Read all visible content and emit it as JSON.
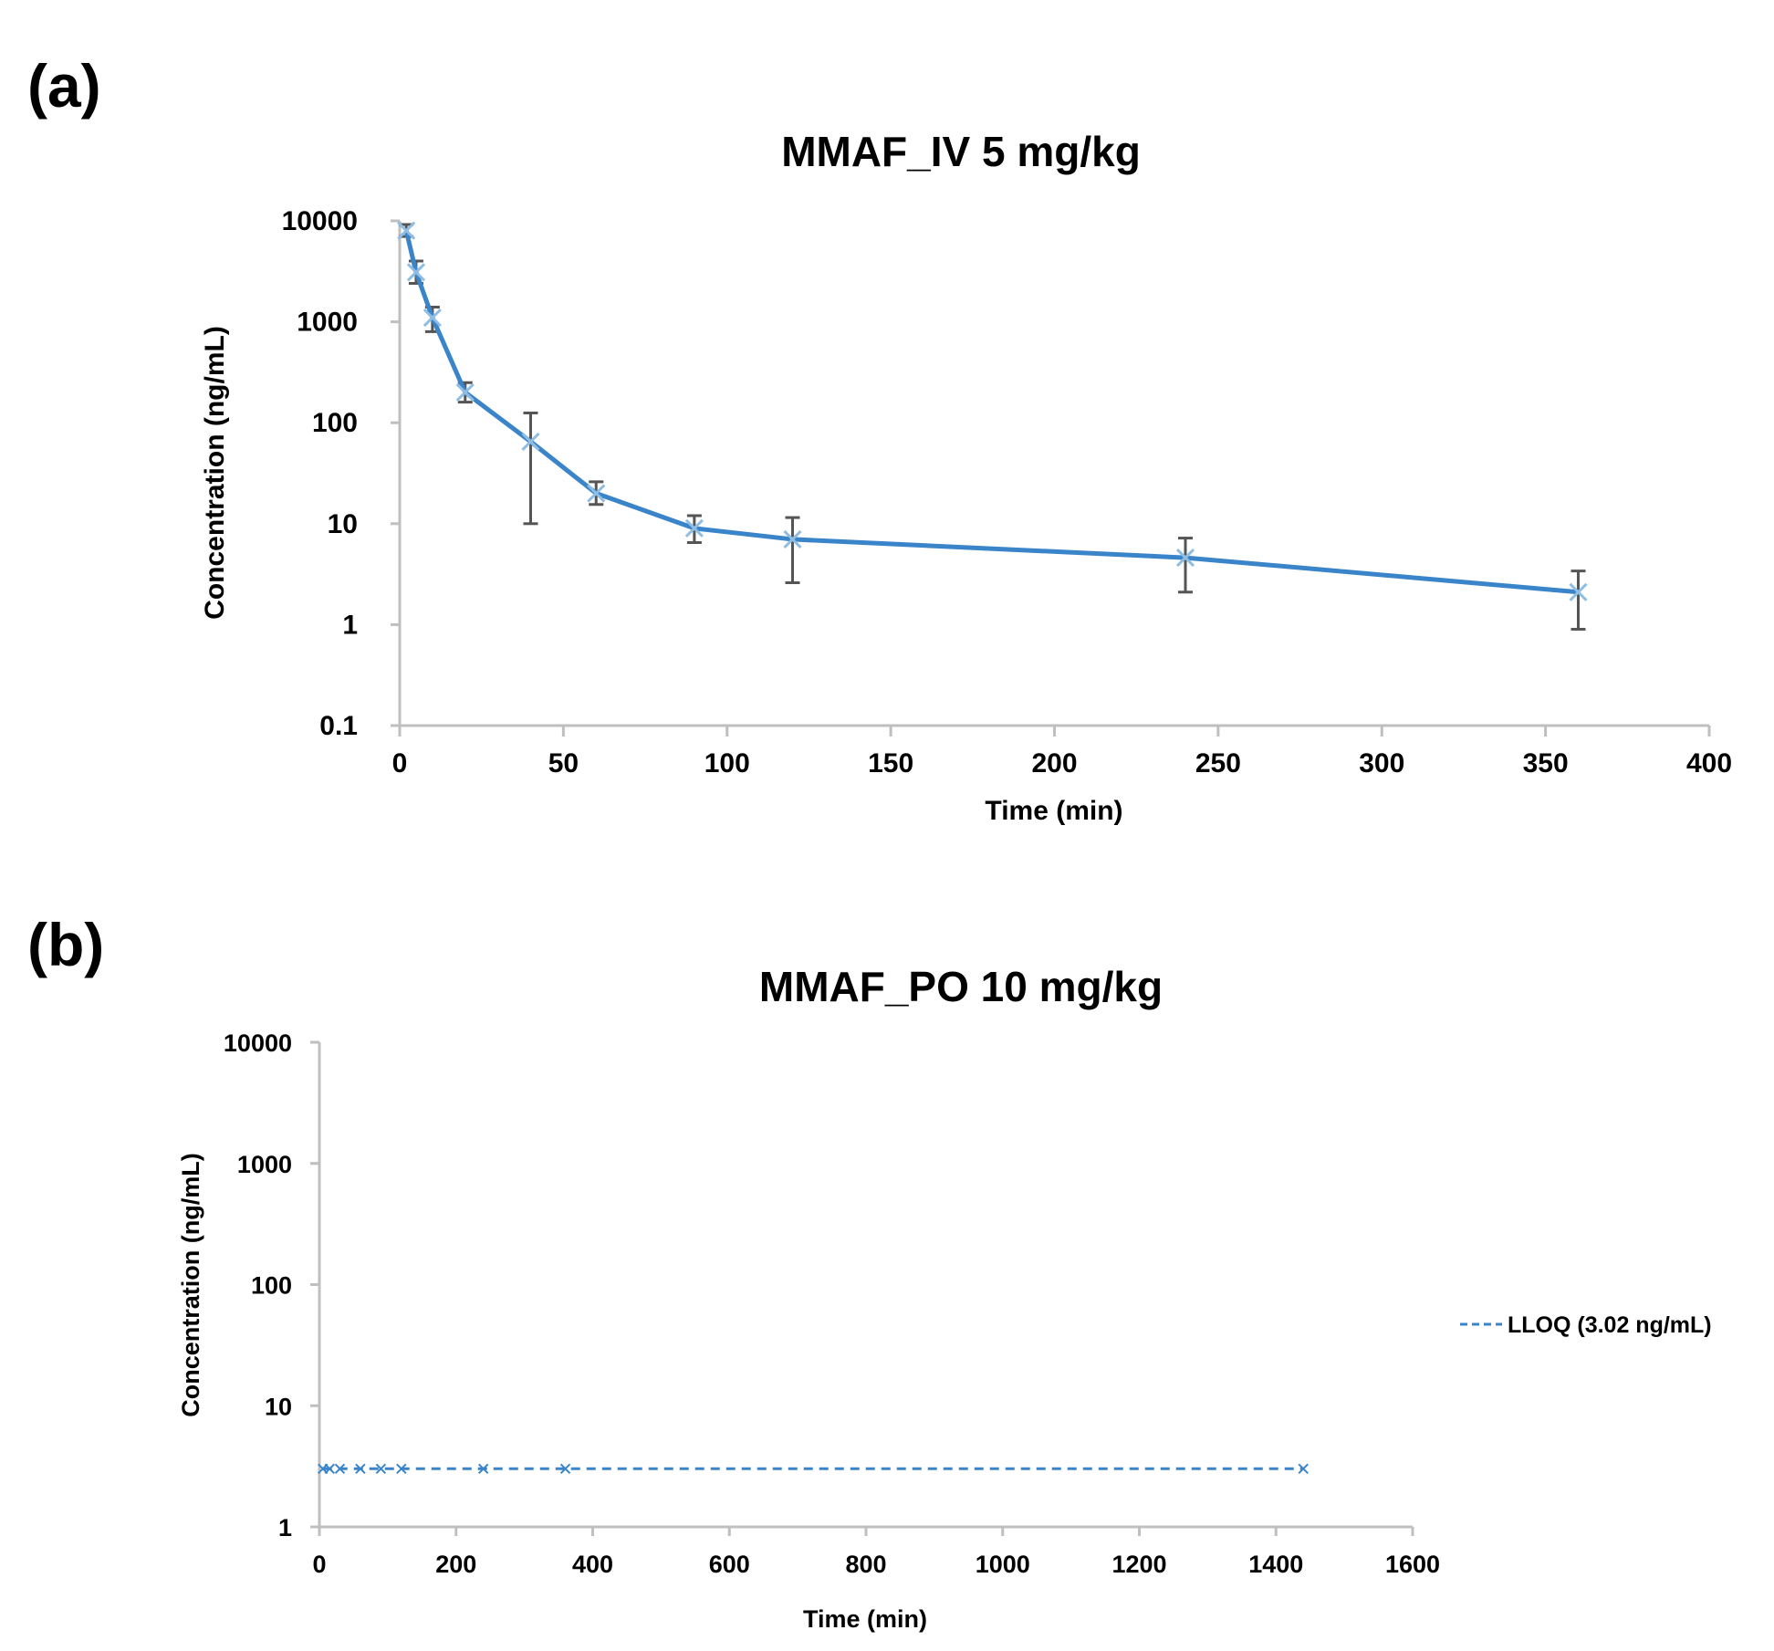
{
  "chart_data": [
    {
      "id": "a",
      "panel_label": "(a)",
      "type": "line",
      "title": "MMAF_IV  5 mg/kg",
      "xlabel": "Time (min)",
      "ylabel": "Concentration (ng/mL)",
      "xlim": [
        0,
        400
      ],
      "ylim": [
        0.1,
        10000
      ],
      "yscale": "log",
      "x_ticks": [
        "0",
        "50",
        "100",
        "150",
        "200",
        "250",
        "300",
        "350",
        "400"
      ],
      "x_tick_values": [
        0,
        50,
        100,
        150,
        200,
        250,
        300,
        350,
        400
      ],
      "y_ticks": [
        "10000",
        "1000",
        "100",
        "10",
        "1",
        "0.1"
      ],
      "y_tick_values": [
        10000,
        1000,
        100,
        10,
        1,
        0.1
      ],
      "grid": false,
      "series": [
        {
          "name": "MMAF IV",
          "color": "#3a84c9",
          "x": [
            2,
            5,
            10,
            20,
            40,
            60,
            90,
            120,
            240,
            360
          ],
          "y": [
            8000,
            3100,
            1100,
            200,
            65,
            20,
            9,
            7,
            4.6,
            2.1
          ],
          "err_low": [
            7000,
            2400,
            800,
            160,
            10,
            15.5,
            6.5,
            2.6,
            2.1,
            0.9
          ],
          "err_high": [
            9200,
            4000,
            1400,
            250,
            125,
            26,
            12,
            11.5,
            7.2,
            3.4
          ]
        }
      ]
    },
    {
      "id": "b",
      "panel_label": "(b)",
      "type": "line",
      "title": "MMAF_PO 10 mg/kg",
      "xlabel": "Time (min)",
      "ylabel": "Concentration (ng/mL)",
      "xlim": [
        0,
        1600
      ],
      "ylim": [
        1,
        10000
      ],
      "yscale": "log",
      "x_ticks": [
        "0",
        "200",
        "400",
        "600",
        "800",
        "1000",
        "1200",
        "1400",
        "1600"
      ],
      "x_tick_values": [
        0,
        200,
        400,
        600,
        800,
        1000,
        1200,
        1400,
        1600
      ],
      "y_ticks": [
        "10000",
        "1000",
        "100",
        "10",
        "1"
      ],
      "y_tick_values": [
        10000,
        1000,
        100,
        10,
        1
      ],
      "grid": false,
      "legend_position": "right",
      "series": [
        {
          "name": "LLOQ (3.02 ng/mL)",
          "color": "#3a84c9",
          "style": "dashed",
          "x": [
            5,
            15,
            30,
            60,
            90,
            120,
            240,
            360,
            1440
          ],
          "y": [
            3.02,
            3.02,
            3.02,
            3.02,
            3.02,
            3.02,
            3.02,
            3.02,
            3.02
          ]
        }
      ]
    }
  ]
}
